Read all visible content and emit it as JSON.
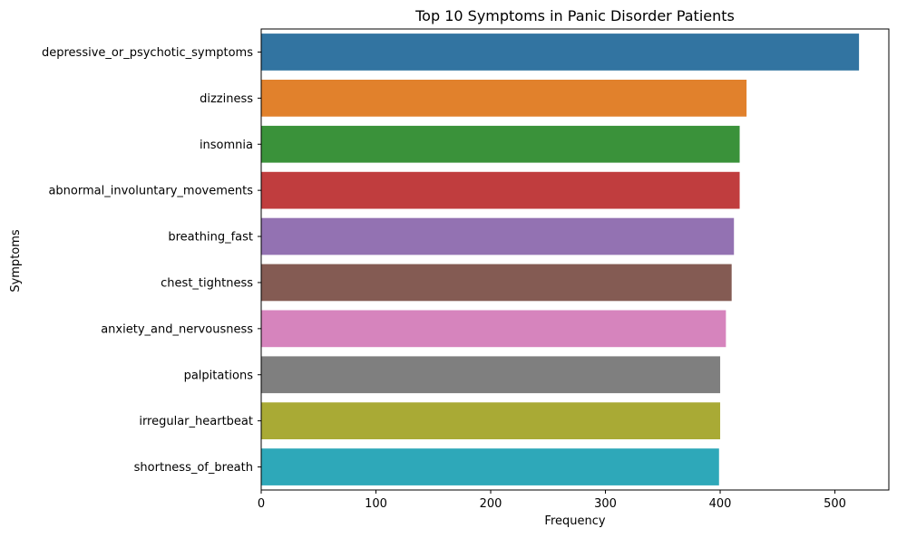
{
  "chart_data": {
    "type": "bar",
    "orientation": "horizontal",
    "title": "Top 10 Symptoms in Panic Disorder Patients",
    "xlabel": "Frequency",
    "ylabel": "Symptoms",
    "xlim": [
      0,
      547
    ],
    "xticks": [
      0,
      100,
      200,
      300,
      400,
      500
    ],
    "grid": false,
    "categories": [
      "depressive_or_psychotic_symptoms",
      "dizziness",
      "insomnia",
      "abnormal_involuntary_movements",
      "breathing_fast",
      "chest_tightness",
      "anxiety_and_nervousness",
      "palpitations",
      "irregular_heartbeat",
      "shortness_of_breath"
    ],
    "values": [
      521,
      423,
      417,
      417,
      412,
      410,
      405,
      400,
      400,
      399
    ],
    "colors": [
      "#3274a1",
      "#e1812c",
      "#3a923a",
      "#c03d3e",
      "#9372b2",
      "#845b53",
      "#d684bd",
      "#7f7f7f",
      "#a9aa35",
      "#2ea8b9"
    ]
  }
}
